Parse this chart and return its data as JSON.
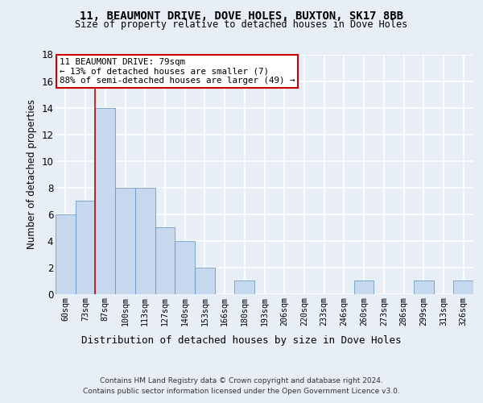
{
  "title1": "11, BEAUMONT DRIVE, DOVE HOLES, BUXTON, SK17 8BB",
  "title2": "Size of property relative to detached houses in Dove Holes",
  "xlabel": "Distribution of detached houses by size in Dove Holes",
  "ylabel": "Number of detached properties",
  "categories": [
    "60sqm",
    "73sqm",
    "87sqm",
    "100sqm",
    "113sqm",
    "127sqm",
    "140sqm",
    "153sqm",
    "166sqm",
    "180sqm",
    "193sqm",
    "206sqm",
    "220sqm",
    "233sqm",
    "246sqm",
    "260sqm",
    "273sqm",
    "286sqm",
    "299sqm",
    "313sqm",
    "326sqm"
  ],
  "values": [
    6,
    7,
    14,
    8,
    8,
    5,
    4,
    2,
    0,
    1,
    0,
    0,
    0,
    0,
    0,
    1,
    0,
    0,
    1,
    0,
    1
  ],
  "bar_color": "#c5d8ed",
  "bar_edge_color": "#5a8fc0",
  "ylim": [
    0,
    18
  ],
  "yticks": [
    0,
    2,
    4,
    6,
    8,
    10,
    12,
    14,
    16,
    18
  ],
  "vline_x_index": 1.5,
  "annotation_line1": "11 BEAUMONT DRIVE: 79sqm",
  "annotation_line2": "← 13% of detached houses are smaller (7)",
  "annotation_line3": "88% of semi-detached houses are larger (49) →",
  "annotation_box_color": "#ffffff",
  "annotation_box_edge": "#cc0000",
  "footer1": "Contains HM Land Registry data © Crown copyright and database right 2024.",
  "footer2": "Contains public sector information licensed under the Open Government Licence v3.0.",
  "background_color": "#e8eef5",
  "grid_color": "#ffffff"
}
